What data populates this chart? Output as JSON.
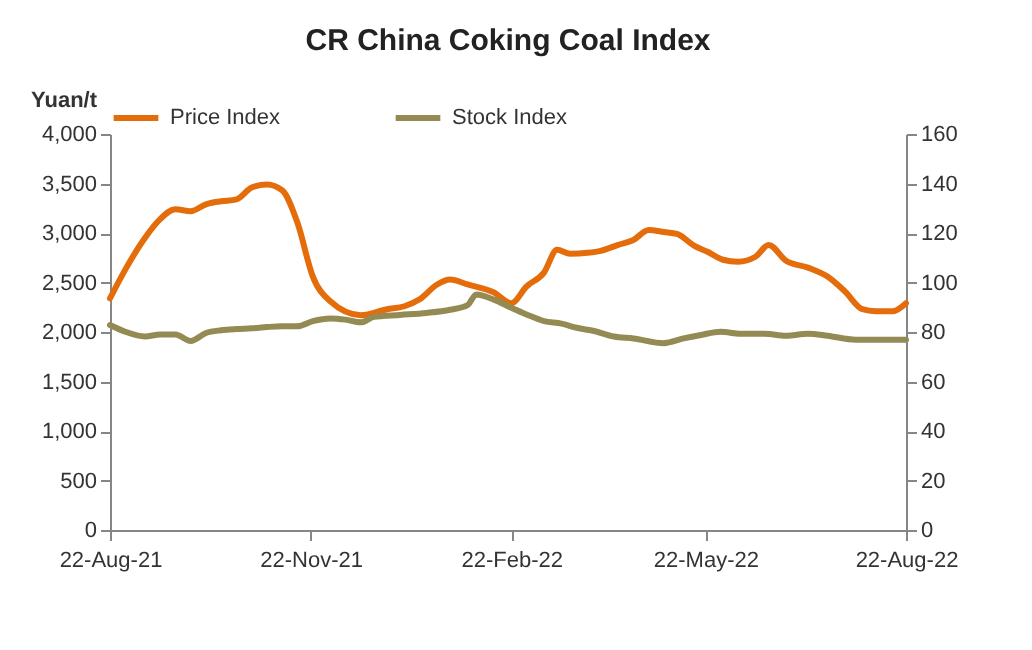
{
  "chart_data": {
    "type": "line",
    "title": "CR China Coking Coal Index",
    "ylabel": "Yuan/t",
    "xlim": [
      "2021-08-22",
      "2022-08-22"
    ],
    "xticks": [
      {
        "value": "2021-08-22",
        "label": "22-Aug-21"
      },
      {
        "value": "2021-11-22",
        "label": "22-Nov-21"
      },
      {
        "value": "2022-02-22",
        "label": "22-Feb-22"
      },
      {
        "value": "2022-05-22",
        "label": "22-May-22"
      },
      {
        "value": "2022-08-22",
        "label": "22-Aug-22"
      }
    ],
    "ylim": [
      0,
      4000
    ],
    "yticks": [
      {
        "value": 0,
        "label": "0"
      },
      {
        "value": 500,
        "label": "500"
      },
      {
        "value": 1000,
        "label": "1,000"
      },
      {
        "value": 1500,
        "label": "1,500"
      },
      {
        "value": 2000,
        "label": "2,000"
      },
      {
        "value": 2500,
        "label": "2,500"
      },
      {
        "value": 3000,
        "label": "3,000"
      },
      {
        "value": 3500,
        "label": "3,500"
      },
      {
        "value": 4000,
        "label": "4,000"
      }
    ],
    "y2lim": [
      0,
      160
    ],
    "y2ticks": [
      0,
      20,
      40,
      60,
      80,
      100,
      120,
      140,
      160
    ],
    "legend": "top",
    "grid": false,
    "series": [
      {
        "name": "Price Index",
        "color": "#e46c0a",
        "x": [
          "2021-08-22",
          "2021-08-29",
          "2021-09-07",
          "2021-09-14",
          "2021-09-21",
          "2021-09-28",
          "2021-10-05",
          "2021-10-12",
          "2021-10-19",
          "2021-10-26",
          "2021-11-02",
          "2021-11-09",
          "2021-11-16",
          "2021-11-23",
          "2021-12-01",
          "2021-12-15",
          "2021-12-27",
          "2022-01-04",
          "2022-01-11",
          "2022-01-19",
          "2022-01-25",
          "2022-02-02",
          "2022-02-14",
          "2022-02-22",
          "2022-03-01",
          "2022-03-09",
          "2022-03-15",
          "2022-03-21",
          "2022-03-29",
          "2022-04-04",
          "2022-04-12",
          "2022-04-19",
          "2022-04-26",
          "2022-05-03",
          "2022-05-09",
          "2022-05-17",
          "2022-05-23",
          "2022-05-30",
          "2022-06-06",
          "2022-06-14",
          "2022-06-20",
          "2022-06-28",
          "2022-07-08",
          "2022-07-17",
          "2022-07-25",
          "2022-08-02",
          "2022-08-08",
          "2022-08-16",
          "2022-08-22"
        ],
        "values": [
          2340,
          2630,
          2950,
          3140,
          3240,
          3220,
          3290,
          3320,
          3340,
          3460,
          3490,
          3430,
          3100,
          2560,
          2310,
          2170,
          2230,
          2260,
          2330,
          2480,
          2530,
          2480,
          2400,
          2290,
          2460,
          2600,
          2830,
          2790,
          2800,
          2820,
          2880,
          2930,
          3030,
          3010,
          2990,
          2870,
          2810,
          2730,
          2710,
          2760,
          2880,
          2720,
          2650,
          2560,
          2410,
          2230,
          2210,
          2210,
          2290
        ]
      },
      {
        "name": "Stock Index",
        "color": "#948a54",
        "axis": "y2",
        "x": [
          "2021-08-22",
          "2021-08-29",
          "2021-09-07",
          "2021-09-14",
          "2021-09-21",
          "2021-09-28",
          "2021-10-05",
          "2021-10-12",
          "2021-10-19",
          "2021-10-26",
          "2021-11-02",
          "2021-11-09",
          "2021-11-16",
          "2021-11-23",
          "2021-12-01",
          "2021-12-08",
          "2021-12-15",
          "2021-12-21",
          "2022-01-02",
          "2022-01-14",
          "2022-01-25",
          "2022-02-02",
          "2022-02-06",
          "2022-02-14",
          "2022-02-22",
          "2022-03-01",
          "2022-03-09",
          "2022-03-17",
          "2022-03-24",
          "2022-04-01",
          "2022-04-10",
          "2022-04-19",
          "2022-05-03",
          "2022-05-12",
          "2022-05-20",
          "2022-05-29",
          "2022-06-07",
          "2022-06-18",
          "2022-06-28",
          "2022-07-08",
          "2022-07-17",
          "2022-07-30",
          "2022-08-11",
          "2022-08-22"
        ],
        "values": [
          82.8,
          80.1,
          78.2,
          79.0,
          79.0,
          76.4,
          79.6,
          80.7,
          81.2,
          81.5,
          82.0,
          82.3,
          82.3,
          84.4,
          85.5,
          85.0,
          83.9,
          86.1,
          86.9,
          87.7,
          89.0,
          90.9,
          95.2,
          93.1,
          89.8,
          87.1,
          84.4,
          83.4,
          81.7,
          80.4,
          78.2,
          77.4,
          75.5,
          77.4,
          78.8,
          80.1,
          79.3,
          79.3,
          78.5,
          79.3,
          78.5,
          76.9,
          76.9,
          76.9
        ]
      }
    ]
  }
}
